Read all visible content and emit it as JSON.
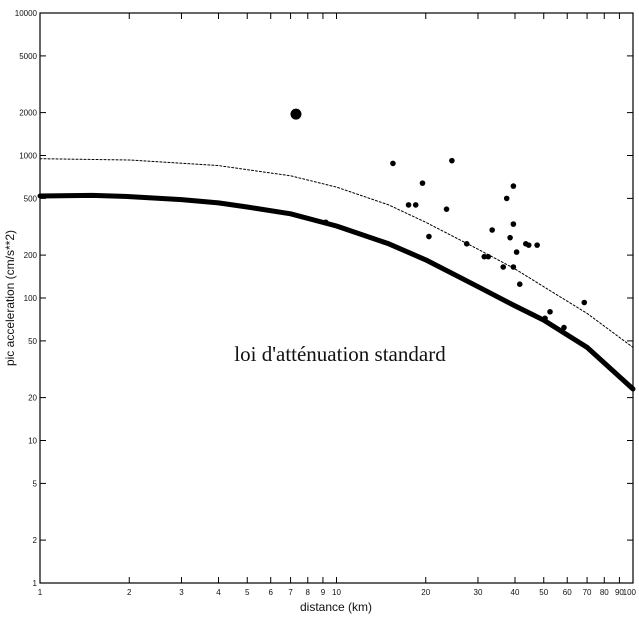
{
  "chart_data": {
    "type": "line",
    "x_scale": "log",
    "y_scale": "log",
    "xlim": [
      1,
      100
    ],
    "ylim": [
      1,
      10000
    ],
    "xlabel": "distance (km)",
    "ylabel": "pic acceleration (cm/s**2)",
    "annotation": "loi d'atténuation standard",
    "grid": false,
    "x_ticks": [
      {
        "v": 1,
        "label": "1"
      },
      {
        "v": 2,
        "label": "2"
      },
      {
        "v": 3,
        "label": "3"
      },
      {
        "v": 4,
        "label": "4"
      },
      {
        "v": 5,
        "label": "5"
      },
      {
        "v": 6,
        "label": "6"
      },
      {
        "v": 7,
        "label": "7"
      },
      {
        "v": 8,
        "label": "8"
      },
      {
        "v": 9,
        "label": "9"
      },
      {
        "v": 10,
        "label": "10"
      },
      {
        "v": 20,
        "label": "20"
      },
      {
        "v": 30,
        "label": "30"
      },
      {
        "v": 40,
        "label": "40"
      },
      {
        "v": 50,
        "label": "50"
      },
      {
        "v": 60,
        "label": "60"
      },
      {
        "v": 70,
        "label": "70"
      },
      {
        "v": 80,
        "label": "80"
      },
      {
        "v": 90,
        "label": "90"
      },
      {
        "v": 100,
        "label": "100"
      }
    ],
    "y_ticks": [
      {
        "v": 1,
        "label": "1"
      },
      {
        "v": 2,
        "label": "2"
      },
      {
        "v": 5,
        "label": "5"
      },
      {
        "v": 10,
        "label": "10"
      },
      {
        "v": 20,
        "label": "20"
      },
      {
        "v": 50,
        "label": "50"
      },
      {
        "v": 100,
        "label": "100"
      },
      {
        "v": 200,
        "label": "200"
      },
      {
        "v": 500,
        "label": "500"
      },
      {
        "v": 1000,
        "label": "1000"
      },
      {
        "v": 2000,
        "label": "2000"
      },
      {
        "v": 5000,
        "label": "5000"
      },
      {
        "v": 10000,
        "label": "10000"
      }
    ],
    "series": [
      {
        "style": "solid-thick",
        "color": "#000000",
        "x": [
          1,
          1.5,
          2,
          3,
          4,
          5,
          7,
          10,
          15,
          20,
          30,
          40,
          50,
          70,
          100
        ],
        "y": [
          520,
          525,
          515,
          490,
          465,
          435,
          390,
          320,
          240,
          185,
          120,
          88,
          70,
          45,
          23
        ]
      },
      {
        "style": "dotted",
        "color": "#000000",
        "x": [
          1,
          2,
          4,
          7,
          10,
          15,
          20,
          30,
          40,
          50,
          70,
          100
        ],
        "y": [
          950,
          930,
          850,
          720,
          600,
          450,
          340,
          220,
          160,
          120,
          78,
          45
        ]
      },
      {
        "style": "points",
        "color": "#000000",
        "x": [
          15.5,
          24.5,
          19.5,
          39.5,
          37.5,
          17.5,
          18.5,
          23.5,
          20.5,
          27.5,
          31.5,
          33.5,
          36.5,
          39.5,
          38.5,
          39.5,
          40.5,
          43.5,
          41.5,
          44.5,
          47.5,
          52.5,
          58.5,
          68.5,
          50.5,
          9.2,
          32.5
        ],
        "y": [
          880,
          920,
          640,
          610,
          500,
          450,
          450,
          420,
          270,
          240,
          195,
          300,
          165,
          330,
          265,
          165,
          210,
          240,
          125,
          235,
          235,
          80,
          62,
          93,
          72,
          340,
          195
        ]
      },
      {
        "style": "large-point",
        "color": "#000000",
        "x": [
          7.3
        ],
        "y": [
          1950
        ]
      }
    ]
  }
}
